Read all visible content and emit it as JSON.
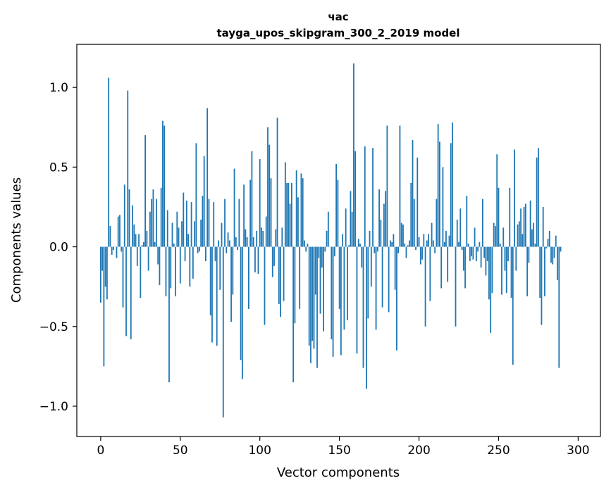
{
  "chart_data": {
    "type": "bar",
    "title": "час",
    "subtitle": "tayga_upos_skipgram_300_2_2019 model",
    "xlabel": "Vector components",
    "ylabel": "Components values",
    "xlim": [
      -15,
      314
    ],
    "ylim": [
      -1.19,
      1.27
    ],
    "xticks": [
      0,
      50,
      100,
      150,
      200,
      250,
      300
    ],
    "xtick_labels": [
      "0",
      "50",
      "100",
      "150",
      "200",
      "250",
      "300"
    ],
    "yticks": [
      -1.0,
      -0.5,
      0.0,
      0.5,
      1.0
    ],
    "ytick_labels": [
      "−1.0",
      "−0.5",
      "0.0",
      "0.5",
      "1.0"
    ],
    "bar_color": "#1f77b4",
    "bar_width": 0.8,
    "values": [
      -0.35,
      -0.15,
      -0.75,
      -0.25,
      -0.33,
      1.06,
      0.13,
      -0.05,
      -0.02,
      0.0,
      -0.07,
      0.19,
      0.2,
      -0.03,
      -0.38,
      0.39,
      -0.56,
      0.98,
      0.36,
      -0.58,
      0.26,
      0.14,
      0.08,
      -0.12,
      0.08,
      -0.32,
      0.01,
      0.03,
      0.7,
      0.1,
      -0.15,
      0.22,
      0.3,
      0.36,
      0.03,
      0.3,
      -0.11,
      -0.24,
      0.37,
      0.79,
      0.76,
      -0.31,
      0.23,
      -0.85,
      -0.26,
      0.15,
      0.02,
      -0.31,
      0.22,
      0.12,
      -0.23,
      0.16,
      0.34,
      -0.09,
      0.29,
      0.08,
      -0.25,
      0.28,
      -0.2,
      0.16,
      0.65,
      -0.04,
      -0.03,
      0.17,
      0.32,
      0.57,
      -0.09,
      0.87,
      0.3,
      -0.43,
      -0.6,
      0.28,
      -0.09,
      -0.62,
      0.04,
      -0.27,
      0.15,
      -1.07,
      0.3,
      -0.04,
      0.09,
      0.04,
      -0.47,
      -0.3,
      0.49,
      0.06,
      -0.02,
      0.3,
      -0.71,
      -0.83,
      0.39,
      0.11,
      0.06,
      -0.39,
      0.42,
      0.6,
      0.06,
      -0.16,
      0.1,
      -0.17,
      0.55,
      0.12,
      0.1,
      -0.49,
      0.19,
      0.75,
      0.64,
      0.43,
      -0.19,
      -0.12,
      0.11,
      0.81,
      -0.36,
      -0.44,
      0.12,
      -0.34,
      0.53,
      0.4,
      0.4,
      0.27,
      0.4,
      -0.85,
      -0.48,
      0.48,
      0.31,
      -0.39,
      0.46,
      0.43,
      0.04,
      -0.03,
      0.02,
      -0.62,
      -0.73,
      -0.59,
      -0.64,
      -0.3,
      -0.76,
      -0.07,
      -0.42,
      -0.13,
      -0.53,
      -0.03,
      0.1,
      0.22,
      0.0,
      -0.58,
      -0.69,
      -0.06,
      0.52,
      0.42,
      -0.39,
      -0.68,
      0.08,
      -0.52,
      0.24,
      -0.46,
      0.01,
      0.35,
      0.22,
      1.15,
      0.6,
      -0.67,
      0.05,
      0.02,
      -0.13,
      -0.76,
      0.63,
      -0.89,
      -0.45,
      0.1,
      -0.25,
      0.62,
      -0.04,
      -0.52,
      -0.03,
      0.36,
      0.17,
      -0.38,
      0.27,
      0.35,
      0.76,
      -0.41,
      0.04,
      0.03,
      0.08,
      -0.27,
      -0.65,
      -0.04,
      0.76,
      0.15,
      0.14,
      0.02,
      -0.07,
      0.01,
      0.04,
      0.4,
      0.67,
      0.3,
      -0.02,
      0.56,
      0.06,
      -0.11,
      -0.08,
      0.08,
      -0.5,
      0.04,
      0.08,
      -0.34,
      0.15,
      0.04,
      -0.04,
      0.3,
      0.77,
      0.66,
      -0.26,
      0.5,
      0.03,
      0.1,
      -0.22,
      0.07,
      0.65,
      0.78,
      0.0,
      -0.5,
      0.17,
      0.03,
      0.24,
      -0.02,
      -0.15,
      -0.26,
      0.32,
      0.02,
      -0.09,
      -0.06,
      -0.08,
      0.12,
      -0.09,
      -0.03,
      0.03,
      -0.13,
      0.3,
      -0.07,
      -0.18,
      -0.09,
      -0.33,
      -0.54,
      -0.29,
      0.15,
      0.13,
      0.58,
      0.37,
      0.02,
      -0.3,
      0.12,
      -0.15,
      -0.29,
      -0.09,
      0.37,
      -0.32,
      -0.74,
      0.61,
      -0.15,
      0.14,
      0.16,
      0.24,
      0.08,
      0.25,
      0.27,
      -0.31,
      -0.1,
      0.29,
      0.11,
      0.15,
      0.02,
      0.56,
      0.62,
      -0.32,
      -0.49,
      0.25,
      -0.31,
      -0.01,
      0.05,
      0.1,
      -0.1,
      -0.11,
      -0.07,
      0.07,
      -0.21,
      -0.76,
      -0.03
    ]
  }
}
